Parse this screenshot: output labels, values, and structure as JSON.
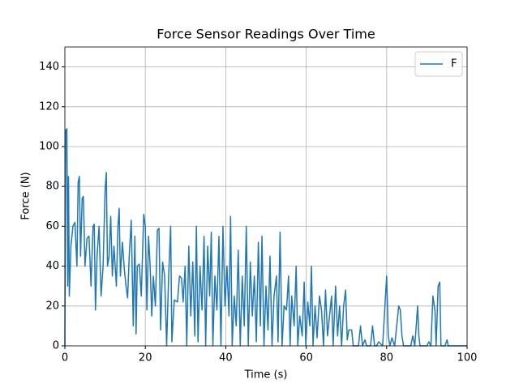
{
  "chart_data": {
    "type": "line",
    "title": "Force Sensor Readings Over Time",
    "x_label": "Time (s)",
    "y_label": "Force (N)",
    "x": [
      0,
      0.2,
      0.5,
      0.7,
      0.9,
      1.1,
      1.5,
      2,
      2.5,
      3,
      3.3,
      3.6,
      3.9,
      4.3,
      4.6,
      5,
      5.5,
      6,
      6.5,
      7,
      7.3,
      7.6,
      8,
      8.5,
      9,
      9.5,
      10,
      10.3,
      10.6,
      11,
      11.4,
      11.8,
      12.2,
      12.8,
      13.2,
      13.5,
      13.8,
      14.3,
      14.8,
      15.2,
      15.6,
      16,
      16.5,
      17,
      17.4,
      17.7,
      18,
      18.5,
      19,
      19.6,
      20,
      20.4,
      20.8,
      21.2,
      21.6,
      22,
      22.5,
      23,
      23.4,
      23.8,
      24.3,
      24.8,
      25.3,
      25.8,
      26.3,
      26.6,
      27.2,
      28,
      28.5,
      29,
      29.4,
      29.9,
      30.3,
      30.8,
      31.3,
      31.8,
      32.3,
      32.7,
      33.1,
      33.6,
      34.1,
      34.6,
      35,
      35.5,
      36,
      36.4,
      36.8,
      37.3,
      37.8,
      38.3,
      38.8,
      39.3,
      39.8,
      40.3,
      40.8,
      41.2,
      41.6,
      42.1,
      42.6,
      43.1,
      43.6,
      44.1,
      44.6,
      45.1,
      45.6,
      46.1,
      46.6,
      47.1,
      47.6,
      48.1,
      48.6,
      49,
      49.5,
      50,
      50.5,
      51,
      51.5,
      52,
      52.6,
      53,
      53.5,
      54,
      54.5,
      55.1,
      55.6,
      56,
      56.4,
      57,
      57.5,
      57.9,
      58.4,
      59,
      59.5,
      59.9,
      60.4,
      60.9,
      61.3,
      61.7,
      62.2,
      62.7,
      63.3,
      63.8,
      64.3,
      64.8,
      65.3,
      65.8,
      66.3,
      66.7,
      67.3,
      67.8,
      68.3,
      68.8,
      69.3,
      69.8,
      70.2,
      70.6,
      71.3,
      71.7,
      72.3,
      73,
      73.5,
      74,
      74.6,
      75,
      76,
      76.5,
      77,
      77.5,
      78,
      79,
      80,
      80.4,
      80.8,
      81.3,
      82,
      83,
      83.4,
      83.8,
      84.2,
      85,
      86,
      86.5,
      87,
      87.7,
      88,
      88.3,
      89,
      90,
      90.5,
      91,
      91.5,
      92,
      92.3,
      92.8,
      93.2,
      93.5,
      94.5,
      95,
      95.3,
      100
    ],
    "series": [
      {
        "name": "F",
        "color": "#1f77b4",
        "values": [
          0,
          108,
          109,
          30,
          85,
          25,
          50,
          60,
          62,
          40,
          82,
          85,
          45,
          74,
          75,
          40,
          54,
          55,
          30,
          60,
          61,
          18,
          45,
          60,
          25,
          40,
          78,
          87,
          40,
          45,
          65,
          35,
          50,
          30,
          60,
          69,
          35,
          52,
          38,
          30,
          24,
          45,
          63,
          10,
          55,
          6,
          40,
          41,
          25,
          66,
          60,
          18,
          55,
          40,
          15,
          35,
          20,
          58,
          59,
          8,
          42,
          35,
          0,
          35,
          60,
          2,
          23,
          22,
          35,
          34,
          22,
          40,
          0,
          50,
          15,
          42,
          5,
          60,
          2,
          40,
          18,
          55,
          0,
          50,
          25,
          57,
          0,
          35,
          18,
          55,
          0,
          60,
          20,
          40,
          15,
          65,
          0,
          25,
          10,
          48,
          0,
          35,
          10,
          60,
          0,
          42,
          15,
          35,
          2,
          52,
          10,
          55,
          0,
          30,
          8,
          45,
          0,
          25,
          35,
          2,
          57,
          0,
          20,
          18,
          35,
          0,
          25,
          10,
          40,
          0,
          15,
          5,
          32,
          0,
          22,
          10,
          40,
          0,
          20,
          4,
          25,
          18,
          0,
          28,
          5,
          15,
          25,
          0,
          30,
          5,
          20,
          0,
          20,
          28,
          3,
          8,
          8,
          0,
          0,
          0,
          10,
          0,
          3,
          0,
          0,
          10,
          0,
          0,
          2,
          0,
          35,
          5,
          0,
          4,
          0,
          20,
          18,
          5,
          0,
          0,
          0,
          5,
          0,
          20,
          5,
          0,
          0,
          0,
          2,
          0,
          25,
          18,
          0,
          30,
          32,
          0,
          0,
          3,
          0,
          0
        ]
      }
    ],
    "xlim": [
      0,
      100
    ],
    "xticks": [
      0,
      20,
      40,
      60,
      80,
      100
    ],
    "ylim": [
      0,
      150
    ],
    "yticks": [
      0,
      20,
      40,
      60,
      80,
      100,
      120,
      140
    ],
    "grid": true,
    "legend": "upper right"
  }
}
